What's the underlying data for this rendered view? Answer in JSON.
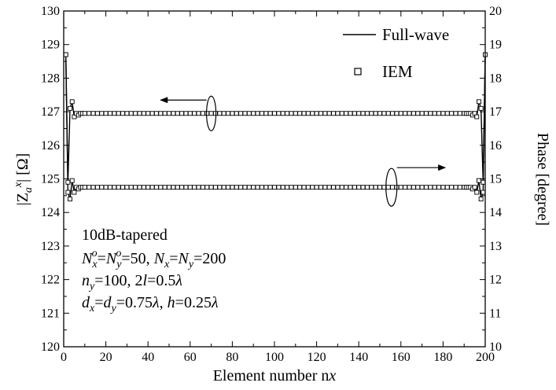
{
  "chart_data": {
    "type": "line",
    "xlabel": "Element number n",
    "xlabel_sub": "x",
    "ylabel_left": "|Z",
    "ylabel_left_sub": "a",
    "ylabel_left_sup": "x",
    "ylabel_left_tail": "| [Ω]",
    "ylabel_right": "Phase [degree]",
    "xlim": [
      0,
      200
    ],
    "ylim_left": [
      120,
      130
    ],
    "ylim_right": [
      10,
      20
    ],
    "x_ticks": [
      0,
      20,
      40,
      60,
      80,
      100,
      120,
      140,
      160,
      180,
      200
    ],
    "y_left_ticks": [
      120,
      121,
      122,
      123,
      124,
      125,
      126,
      127,
      128,
      129,
      130
    ],
    "y_right_ticks": [
      10,
      11,
      12,
      13,
      14,
      15,
      16,
      17,
      18,
      19,
      20
    ],
    "legend": {
      "placement": "top-right",
      "full_wave": "Full-wave",
      "iem": "IEM"
    },
    "annotations": {
      "line1": "10dB-tapered",
      "line2": {
        "N": "N",
        "sub_x": "x",
        "sup_o": "o",
        "eq1": "=",
        "Ny": "N",
        "sub_y": "y",
        "sup_o2": "o",
        "eq2": "=50, ",
        "Nx": "N",
        "sub_x2": "x",
        "eq3": "=",
        "Ny2": "N",
        "sub_y2": "y",
        "eq4": "=200"
      },
      "line3": {
        "n": "n",
        "sub_y": "y",
        "eq1": "=100, 2",
        "l": "l",
        "eq2": "=0.5",
        "lambda": "λ"
      },
      "line4": {
        "d": "d",
        "sub_x": "x",
        "eq1": "=",
        "d2": "d",
        "sub_y": "y",
        "eq2": "=0.75",
        "lambda1": "λ",
        "sep": ", ",
        "h": "h",
        "eq3": "=0.25",
        "lambda2": "λ"
      }
    },
    "series": [
      {
        "name": "Full-wave",
        "axis": "left",
        "quantity": "magnitude",
        "edge_x": [
          1,
          2,
          3,
          4,
          5,
          6,
          7,
          8
        ],
        "edge_y": [
          128.7,
          124.9,
          127.1,
          127.3,
          126.85,
          126.95,
          126.9,
          126.95
        ],
        "steady": 126.95
      },
      {
        "name": "Full-wave",
        "axis": "right",
        "quantity": "phase",
        "edge_x": [
          1,
          2,
          3,
          4,
          5,
          6,
          7,
          8
        ],
        "edge_y": [
          18.7,
          14.6,
          14.4,
          14.95,
          14.6,
          14.75,
          14.7,
          14.75
        ],
        "steady": 14.75
      }
    ],
    "markers": {
      "step": 2,
      "color": "#000000"
    }
  }
}
